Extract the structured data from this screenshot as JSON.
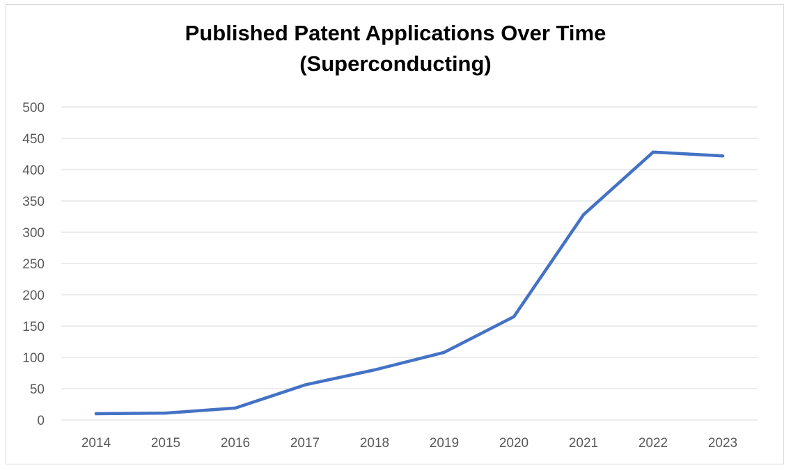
{
  "chart_data": {
    "type": "line",
    "title": "Published Patent Applications Over Time",
    "subtitle": "(Superconducting)",
    "xlabel": "",
    "ylabel": "",
    "categories": [
      "2014",
      "2015",
      "2016",
      "2017",
      "2018",
      "2019",
      "2020",
      "2021",
      "2022",
      "2023"
    ],
    "series": [
      {
        "name": "Published Patent Applications",
        "values": [
          10,
          11,
          19,
          56,
          80,
          108,
          165,
          328,
          428,
          422
        ]
      }
    ],
    "ylim": [
      0,
      500
    ],
    "yticks": [
      0,
      50,
      100,
      150,
      200,
      250,
      300,
      350,
      400,
      450,
      500
    ],
    "grid": true,
    "legend": "none",
    "colors": {
      "line": "#4472c4",
      "grid": "#d9d9d9",
      "tick_text": "#595959"
    }
  }
}
